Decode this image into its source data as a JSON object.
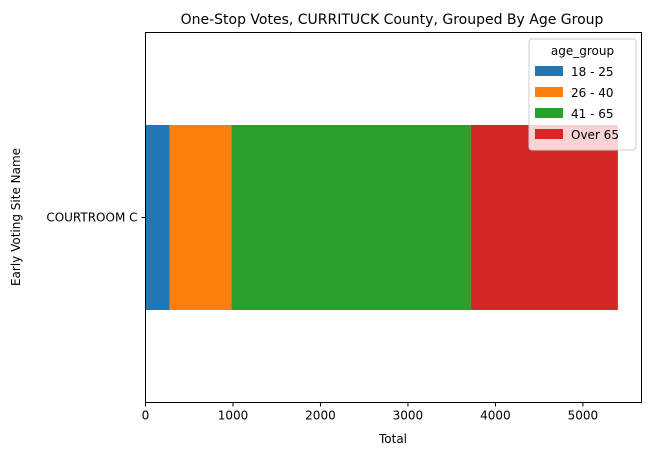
{
  "chart_data": {
    "type": "bar",
    "orientation": "horizontal",
    "stacked": true,
    "title": "One-Stop Votes, CURRITUCK County, Grouped By Age Group",
    "xlabel": "Total",
    "ylabel": "Early Voting Site Name",
    "categories": [
      "COURTROOM C"
    ],
    "xlim": [
      0,
      5670
    ],
    "xticks": [
      0,
      1000,
      2000,
      3000,
      4000,
      5000
    ],
    "grid": false,
    "legend": {
      "title": "age_group",
      "placement": "top-right"
    },
    "series": [
      {
        "name": "18 - 25",
        "color": "#1f77b4",
        "values": [
          275
        ]
      },
      {
        "name": "26 - 40",
        "color": "#ff7f0e",
        "values": [
          705
        ]
      },
      {
        "name": "41 - 65",
        "color": "#2ca02c",
        "values": [
          2740
        ]
      },
      {
        "name": "Over 65",
        "color": "#d62728",
        "values": [
          1680
        ]
      }
    ]
  }
}
